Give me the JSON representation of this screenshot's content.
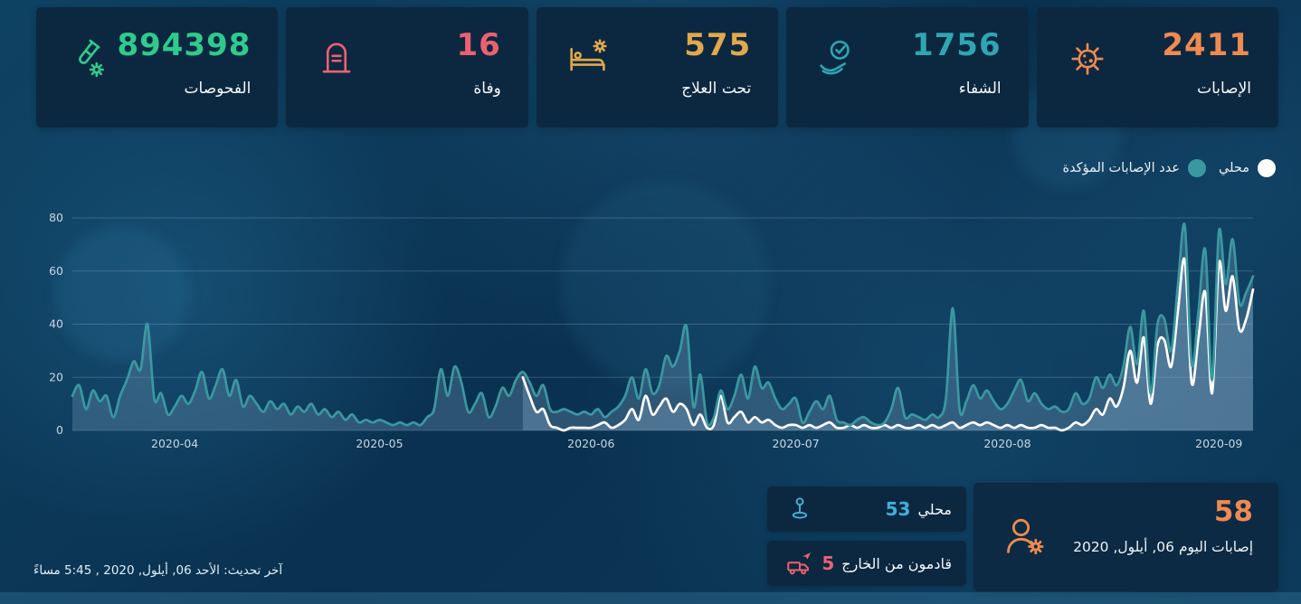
{
  "stats": [
    {
      "value": "894398",
      "label": "الفحوصات",
      "color": "#2fcb8d",
      "icon": "test-tube-icon"
    },
    {
      "value": "16",
      "label": "وفاة",
      "color": "#ec6170",
      "icon": "tombstone-icon"
    },
    {
      "value": "575",
      "label": "تحت العلاج",
      "color": "#e2a84c",
      "icon": "hospital-bed-icon"
    },
    {
      "value": "1756",
      "label": "الشفاء",
      "color": "#2fa6b2",
      "icon": "hand-check-icon"
    },
    {
      "value": "2411",
      "label": "الإصابات",
      "color": "#ef8a50",
      "icon": "virus-icon"
    }
  ],
  "legend": [
    {
      "label": "محلي",
      "color": "#ffffff"
    },
    {
      "label": "عدد الإصابات المؤكدة",
      "color": "#3a98a0"
    }
  ],
  "chart_data": {
    "type": "area",
    "start_date": "2020-03-17",
    "x_ticks": {
      "labels": [
        "2020-04",
        "2020-05",
        "2020-06",
        "2020-07",
        "2020-08",
        "2020-09"
      ],
      "indices": [
        15,
        45,
        76,
        106,
        137,
        168
      ]
    },
    "y_ticks": [
      0,
      20,
      40,
      60,
      80
    ],
    "ylim": [
      0,
      80
    ],
    "grid": true,
    "legend_position": "top-right",
    "series": [
      {
        "name": "عدد الإصابات المؤكدة",
        "color": "#3a98a0",
        "fill": "rgba(125,163,193,0.30)",
        "values": [
          13,
          17,
          8,
          15,
          11,
          13,
          5,
          13,
          19,
          26,
          23,
          40,
          12,
          14,
          6,
          9,
          13,
          10,
          15,
          22,
          12,
          17,
          23,
          13,
          19,
          9,
          13,
          10,
          7,
          11,
          8,
          10,
          6,
          9,
          7,
          10,
          6,
          8,
          5,
          7,
          4,
          6,
          3,
          4,
          3,
          4,
          3,
          2,
          3,
          2,
          3,
          2,
          5,
          8,
          23,
          13,
          24,
          18,
          7,
          10,
          14,
          5,
          9,
          16,
          13,
          19,
          22,
          18,
          13,
          17,
          8,
          7,
          8,
          7,
          6,
          7,
          6,
          8,
          5,
          7,
          9,
          13,
          20,
          12,
          23,
          14,
          17,
          28,
          24,
          30,
          39,
          9,
          21,
          3,
          5,
          15,
          8,
          13,
          21,
          12,
          24,
          16,
          18,
          12,
          8,
          10,
          12,
          3,
          7,
          11,
          8,
          13,
          4,
          3,
          2,
          4,
          5,
          3,
          2,
          3,
          8,
          16,
          5,
          6,
          5,
          4,
          6,
          5,
          12,
          46,
          8,
          11,
          17,
          12,
          15,
          11,
          8,
          10,
          15,
          19,
          11,
          14,
          10,
          8,
          9,
          7,
          8,
          14,
          10,
          12,
          20,
          16,
          21,
          17,
          24,
          39,
          25,
          45,
          14,
          40,
          42,
          30,
          55,
          77,
          25,
          45,
          68,
          19,
          75,
          55,
          72,
          48,
          52,
          58
        ]
      },
      {
        "name": "محلي",
        "color": "#ffffff",
        "fill": "rgba(150,185,214,0.30)",
        "values": [
          null,
          null,
          null,
          null,
          null,
          null,
          null,
          null,
          null,
          null,
          null,
          null,
          null,
          null,
          null,
          null,
          null,
          null,
          null,
          null,
          null,
          null,
          null,
          null,
          null,
          null,
          null,
          null,
          null,
          null,
          null,
          null,
          null,
          null,
          null,
          null,
          null,
          null,
          null,
          null,
          null,
          null,
          null,
          null,
          null,
          null,
          null,
          null,
          null,
          null,
          null,
          null,
          null,
          null,
          null,
          null,
          null,
          null,
          null,
          null,
          null,
          null,
          null,
          null,
          null,
          null,
          20,
          13,
          7,
          8,
          2,
          1,
          0,
          1,
          1,
          1,
          1,
          2,
          3,
          1,
          2,
          4,
          8,
          4,
          13,
          6,
          9,
          12,
          7,
          10,
          8,
          2,
          6,
          1,
          2,
          13,
          3,
          5,
          7,
          3,
          5,
          3,
          4,
          2,
          1,
          2,
          2,
          1,
          2,
          1,
          2,
          3,
          1,
          1,
          2,
          1,
          2,
          1,
          1,
          2,
          1,
          2,
          1,
          1,
          2,
          1,
          2,
          1,
          2,
          3,
          1,
          2,
          3,
          2,
          3,
          2,
          1,
          2,
          1,
          2,
          1,
          1,
          2,
          1,
          1,
          0,
          1,
          3,
          2,
          4,
          8,
          6,
          12,
          9,
          16,
          30,
          18,
          35,
          10,
          32,
          34,
          24,
          45,
          64,
          18,
          35,
          52,
          14,
          63,
          45,
          58,
          38,
          42,
          53
        ]
      }
    ]
  },
  "today": {
    "local": {
      "value": "53",
      "label": "محلي",
      "color": "#41b0d6"
    },
    "imported": {
      "value": "5",
      "label": "قادمون من الخارج",
      "color": "#ec6170"
    },
    "total": {
      "value": "58",
      "label": "إصابات اليوم 06, أيلول, 2020",
      "color": "#ef8a50"
    }
  },
  "footer": {
    "last_update": "آخر تحديث: الأحد 06, أيلول, 2020 , 5:45 مساءً"
  }
}
